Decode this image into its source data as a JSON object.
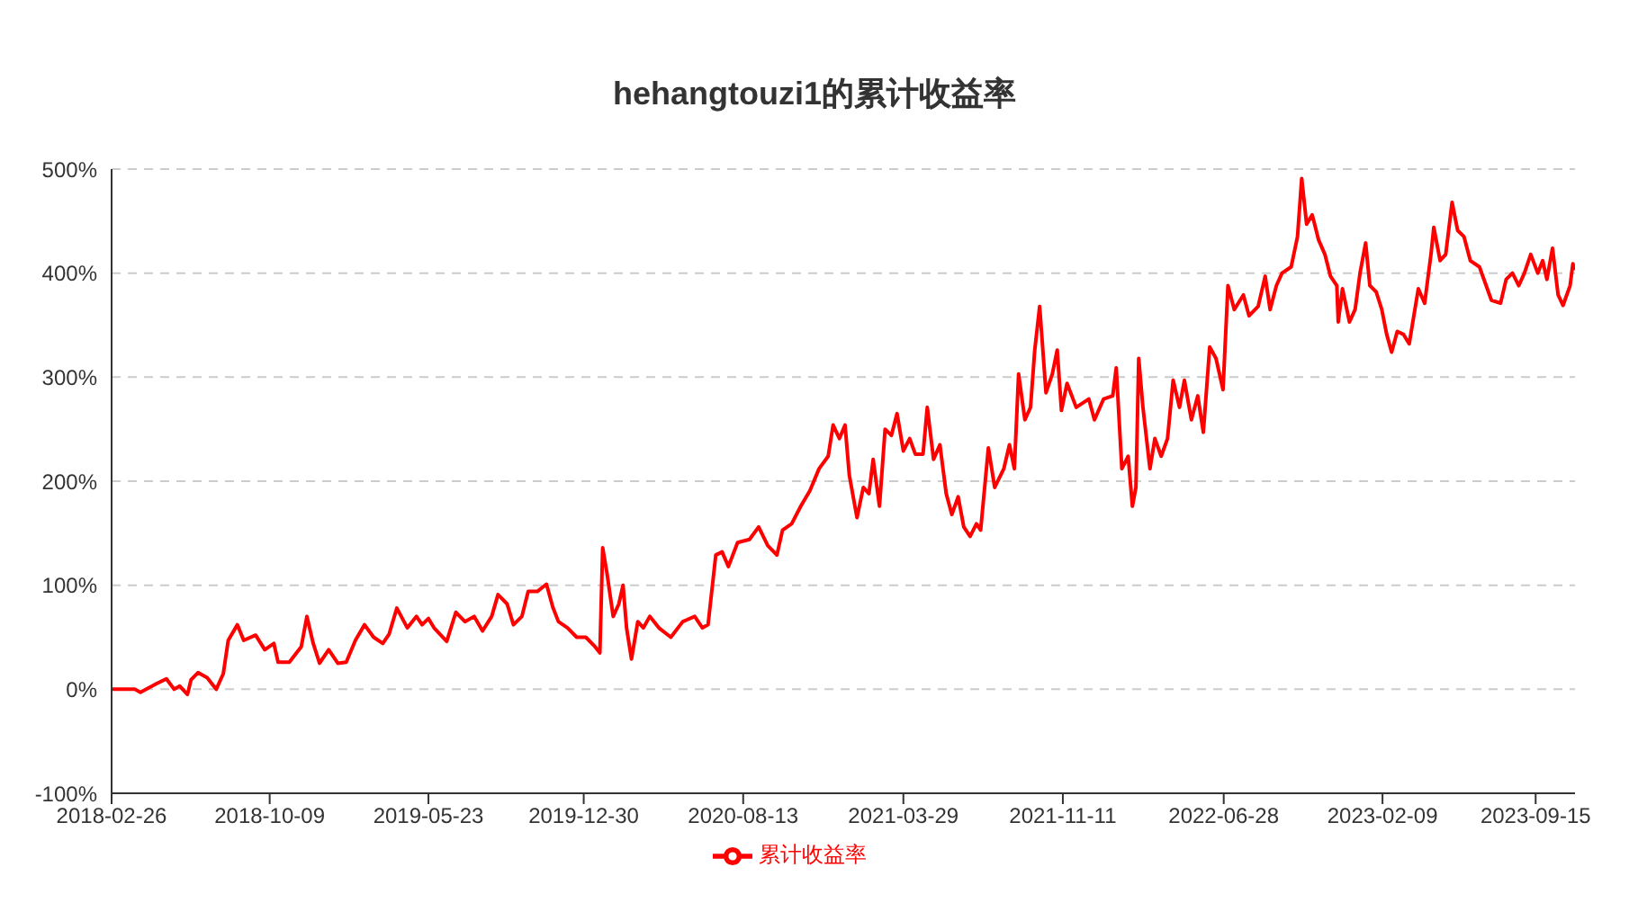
{
  "chart_data": {
    "type": "line",
    "title": "hehangtouzi1的累计收益率",
    "x": [
      "2018-02-26",
      "2018-03-31",
      "2018-04-08",
      "2018-04-30",
      "2018-05-15",
      "2018-05-26",
      "2018-06-03",
      "2018-06-14",
      "2018-06-19",
      "2018-06-29",
      "2018-07-12",
      "2018-07-25",
      "2018-08-04",
      "2018-08-11",
      "2018-08-24",
      "2018-09-02",
      "2018-09-19",
      "2018-10-02",
      "2018-10-15",
      "2018-10-21",
      "2018-11-06",
      "2018-11-23",
      "2018-12-01",
      "2018-12-10",
      "2018-12-19",
      "2019-01-01",
      "2019-01-14",
      "2019-01-26",
      "2019-02-08",
      "2019-02-21",
      "2019-03-06",
      "2019-03-19",
      "2019-03-28",
      "2019-04-08",
      "2019-04-23",
      "2019-05-06",
      "2019-05-14",
      "2019-05-23",
      "2019-05-31",
      "2019-06-18",
      "2019-07-01",
      "2019-07-14",
      "2019-07-27",
      "2019-08-08",
      "2019-08-21",
      "2019-08-30",
      "2019-09-12",
      "2019-09-21",
      "2019-10-03",
      "2019-10-12",
      "2019-10-25",
      "2019-11-07",
      "2019-11-16",
      "2019-11-24",
      "2019-12-07",
      "2019-12-20",
      "2020-01-02",
      "2020-01-15",
      "2020-01-22",
      "2020-01-26",
      "2020-02-01",
      "2020-02-10",
      "2020-02-18",
      "2020-02-24",
      "2020-02-29",
      "2020-03-07",
      "2020-03-16",
      "2020-03-24",
      "2020-04-02",
      "2020-04-15",
      "2020-05-02",
      "2020-05-19",
      "2020-06-05",
      "2020-06-16",
      "2020-06-24",
      "2020-07-05",
      "2020-07-14",
      "2020-07-23",
      "2020-08-05",
      "2020-08-22",
      "2020-09-04",
      "2020-09-17",
      "2020-09-30",
      "2020-10-08",
      "2020-10-21",
      "2020-11-03",
      "2020-11-16",
      "2020-11-29",
      "2020-12-12",
      "2020-12-19",
      "2020-12-28",
      "2021-01-05",
      "2021-01-11",
      "2021-01-22",
      "2021-01-31",
      "2021-02-08",
      "2021-02-14",
      "2021-02-23",
      "2021-03-03",
      "2021-03-12",
      "2021-03-20",
      "2021-03-29",
      "2021-04-07",
      "2021-04-15",
      "2021-04-26",
      "2021-05-02",
      "2021-05-11",
      "2021-05-20",
      "2021-05-29",
      "2021-06-06",
      "2021-06-15",
      "2021-06-23",
      "2021-07-02",
      "2021-07-11",
      "2021-07-17",
      "2021-07-28",
      "2021-08-06",
      "2021-08-19",
      "2021-08-27",
      "2021-09-03",
      "2021-09-09",
      "2021-09-18",
      "2021-09-26",
      "2021-10-02",
      "2021-10-09",
      "2021-10-18",
      "2021-10-27",
      "2021-11-03",
      "2021-11-09",
      "2021-11-17",
      "2021-11-30",
      "2021-12-18",
      "2021-12-26",
      "2022-01-08",
      "2022-01-21",
      "2022-01-26",
      "2022-02-03",
      "2022-02-12",
      "2022-02-18",
      "2022-02-23",
      "2022-02-27",
      "2022-03-05",
      "2022-03-15",
      "2022-03-22",
      "2022-03-31",
      "2022-04-09",
      "2022-04-17",
      "2022-04-26",
      "2022-05-03",
      "2022-05-13",
      "2022-05-22",
      "2022-05-30",
      "2022-06-08",
      "2022-06-17",
      "2022-06-27",
      "2022-07-04",
      "2022-07-13",
      "2022-07-26",
      "2022-08-03",
      "2022-08-16",
      "2022-08-26",
      "2022-09-02",
      "2022-09-11",
      "2022-09-19",
      "2022-10-02",
      "2022-10-11",
      "2022-10-17",
      "2022-10-24",
      "2022-11-01",
      "2022-11-10",
      "2022-11-19",
      "2022-11-27",
      "2022-12-06",
      "2022-12-08",
      "2022-12-14",
      "2022-12-24",
      "2023-01-01",
      "2023-01-08",
      "2023-01-16",
      "2023-01-22",
      "2023-01-31",
      "2023-02-08",
      "2023-02-15",
      "2023-02-22",
      "2023-03-02",
      "2023-03-11",
      "2023-03-19",
      "2023-04-01",
      "2023-04-10",
      "2023-04-19",
      "2023-04-23",
      "2023-05-02",
      "2023-05-10",
      "2023-05-19",
      "2023-05-27",
      "2023-06-05",
      "2023-06-14",
      "2023-06-27",
      "2023-07-14",
      "2023-07-27",
      "2023-08-04",
      "2023-08-13",
      "2023-08-22",
      "2023-08-30",
      "2023-09-08",
      "2023-09-18",
      "2023-09-25",
      "2023-10-01",
      "2023-10-09",
      "2023-10-17",
      "2023-10-24",
      "2023-11-03",
      "2023-11-07",
      "2023-11-10"
    ],
    "series": [
      {
        "name": "累计收益率",
        "color": "#ff0000",
        "values": [
          0,
          0,
          -3,
          5,
          10,
          0,
          3,
          -5,
          9,
          16,
          11,
          0,
          15,
          47,
          62,
          47,
          52,
          38,
          44,
          26,
          26,
          41,
          70,
          44,
          25,
          38,
          25,
          26,
          47,
          62,
          50,
          44,
          53,
          78,
          59,
          70,
          62,
          68,
          59,
          46,
          74,
          65,
          70,
          56,
          70,
          91,
          82,
          62,
          70,
          94,
          94,
          101,
          79,
          65,
          59,
          50,
          50,
          41,
          35,
          136,
          112,
          70,
          82,
          100,
          59,
          29,
          65,
          59,
          70,
          59,
          50,
          65,
          70,
          59,
          62,
          129,
          132,
          118,
          141,
          144,
          156,
          138,
          129,
          153,
          159,
          176,
          191,
          212,
          224,
          254,
          241,
          254,
          206,
          165,
          194,
          188,
          221,
          176,
          250,
          244,
          265,
          229,
          241,
          226,
          226,
          271,
          221,
          235,
          188,
          168,
          185,
          156,
          147,
          159,
          153,
          232,
          194,
          212,
          235,
          212,
          303,
          259,
          271,
          326,
          368,
          285,
          303,
          326,
          268,
          294,
          271,
          279,
          259,
          279,
          282,
          309,
          212,
          224,
          176,
          194,
          318,
          271,
          212,
          241,
          224,
          241,
          297,
          271,
          297,
          259,
          282,
          247,
          329,
          318,
          288,
          388,
          365,
          379,
          359,
          368,
          397,
          365,
          388,
          400,
          406,
          435,
          491,
          447,
          456,
          432,
          418,
          397,
          388,
          353,
          385,
          353,
          365,
          400,
          429,
          388,
          382,
          365,
          341,
          324,
          344,
          341,
          332,
          385,
          371,
          418,
          444,
          412,
          418,
          468,
          441,
          435,
          412,
          406,
          374,
          371,
          394,
          400,
          388,
          400,
          418,
          400,
          412,
          394,
          424,
          379,
          369,
          388,
          409,
          403
        ]
      }
    ],
    "xlim": [
      "2018-02-26",
      "2023-11-10"
    ],
    "xticks": [
      "2018-02-26",
      "2018-10-09",
      "2019-05-23",
      "2019-12-30",
      "2020-08-13",
      "2021-03-29",
      "2021-11-11",
      "2022-06-28",
      "2023-02-09",
      "2023-09-15"
    ],
    "ylim": [
      -100,
      500
    ],
    "yticks": [
      {
        "value": -100,
        "label": "-100%"
      },
      {
        "value": 0,
        "label": "0%"
      },
      {
        "value": 100,
        "label": "100%"
      },
      {
        "value": 200,
        "label": "200%"
      },
      {
        "value": 300,
        "label": "300%"
      },
      {
        "value": 400,
        "label": "400%"
      },
      {
        "value": 500,
        "label": "500%"
      }
    ],
    "grid": "y",
    "legend": "bottom",
    "marker": "none",
    "line_style": "solid"
  }
}
